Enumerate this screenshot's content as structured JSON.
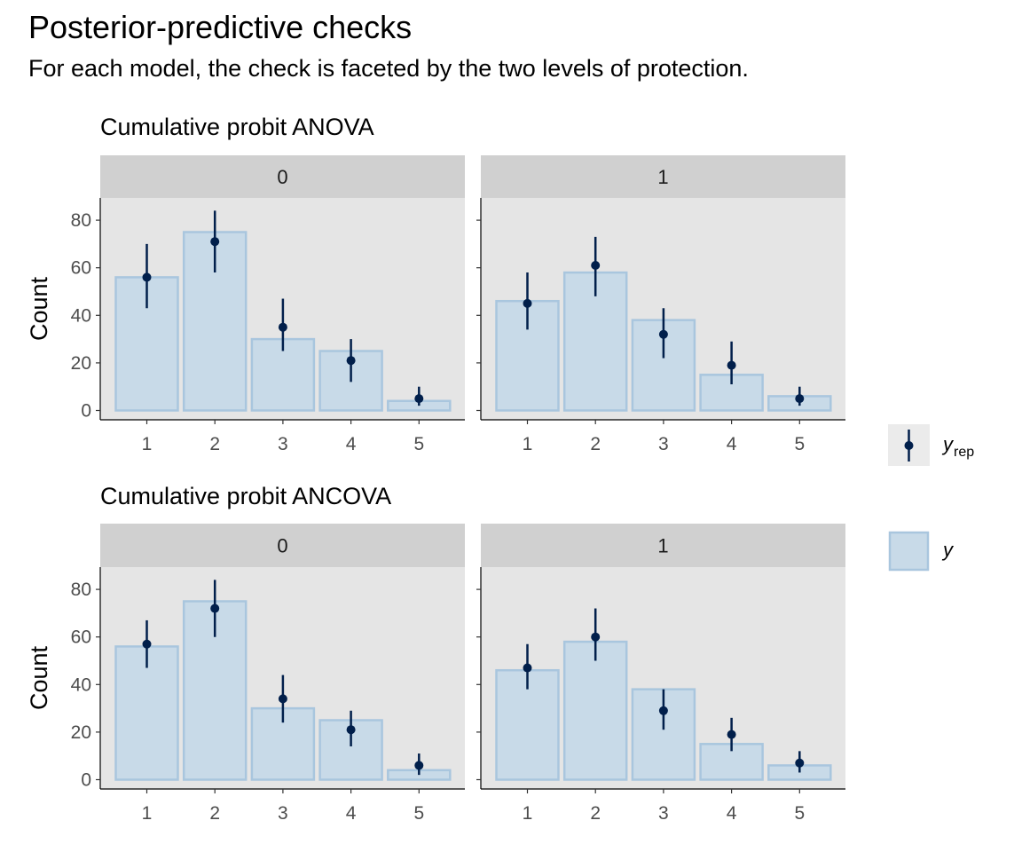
{
  "page": {
    "title": "Posterior-predictive checks",
    "subtitle": "For each model, the check is faceted by the two levels of protection."
  },
  "legend": {
    "yrep_label": "y",
    "yrep_subscript": "rep",
    "y_label": "y",
    "placement": "right"
  },
  "colors": {
    "bar_fill": "#c8dae8",
    "bar_stroke": "#a9c6de",
    "point": "#011f4b",
    "panel_bg": "#e5e5e5",
    "strip_bg": "#d0d0d0"
  },
  "chart_data": [
    {
      "type": "bar",
      "title": "Cumulative probit ANOVA",
      "ylabel": "Count",
      "xlabel": "",
      "ylim": [
        0,
        88
      ],
      "yticks": [
        0,
        20,
        40,
        60,
        80
      ],
      "categories": [
        "1",
        "2",
        "3",
        "4",
        "5"
      ],
      "grid": false,
      "facets": [
        {
          "strip": "0",
          "y": [
            56,
            75,
            30,
            25,
            4
          ],
          "yrep": {
            "median": [
              56,
              71,
              35,
              21,
              5
            ],
            "lower": [
              43,
              58,
              25,
              12,
              2
            ],
            "upper": [
              70,
              84,
              47,
              30,
              10
            ]
          }
        },
        {
          "strip": "1",
          "y": [
            46,
            58,
            38,
            15,
            6
          ],
          "yrep": {
            "median": [
              45,
              61,
              32,
              19,
              5
            ],
            "lower": [
              34,
              48,
              22,
              11,
              2
            ],
            "upper": [
              58,
              73,
              43,
              29,
              10
            ]
          }
        }
      ]
    },
    {
      "type": "bar",
      "title": "Cumulative probit ANCOVA",
      "ylabel": "Count",
      "xlabel": "",
      "ylim": [
        0,
        88
      ],
      "yticks": [
        0,
        20,
        40,
        60,
        80
      ],
      "categories": [
        "1",
        "2",
        "3",
        "4",
        "5"
      ],
      "grid": false,
      "facets": [
        {
          "strip": "0",
          "y": [
            56,
            75,
            30,
            25,
            4
          ],
          "yrep": {
            "median": [
              57,
              72,
              34,
              21,
              6
            ],
            "lower": [
              47,
              60,
              24,
              14,
              2
            ],
            "upper": [
              67,
              84,
              44,
              29,
              11
            ]
          }
        },
        {
          "strip": "1",
          "y": [
            46,
            58,
            38,
            15,
            6
          ],
          "yrep": {
            "median": [
              47,
              60,
              29,
              19,
              7
            ],
            "lower": [
              38,
              50,
              21,
              12,
              3
            ],
            "upper": [
              57,
              72,
              38,
              26,
              12
            ]
          }
        }
      ]
    }
  ]
}
